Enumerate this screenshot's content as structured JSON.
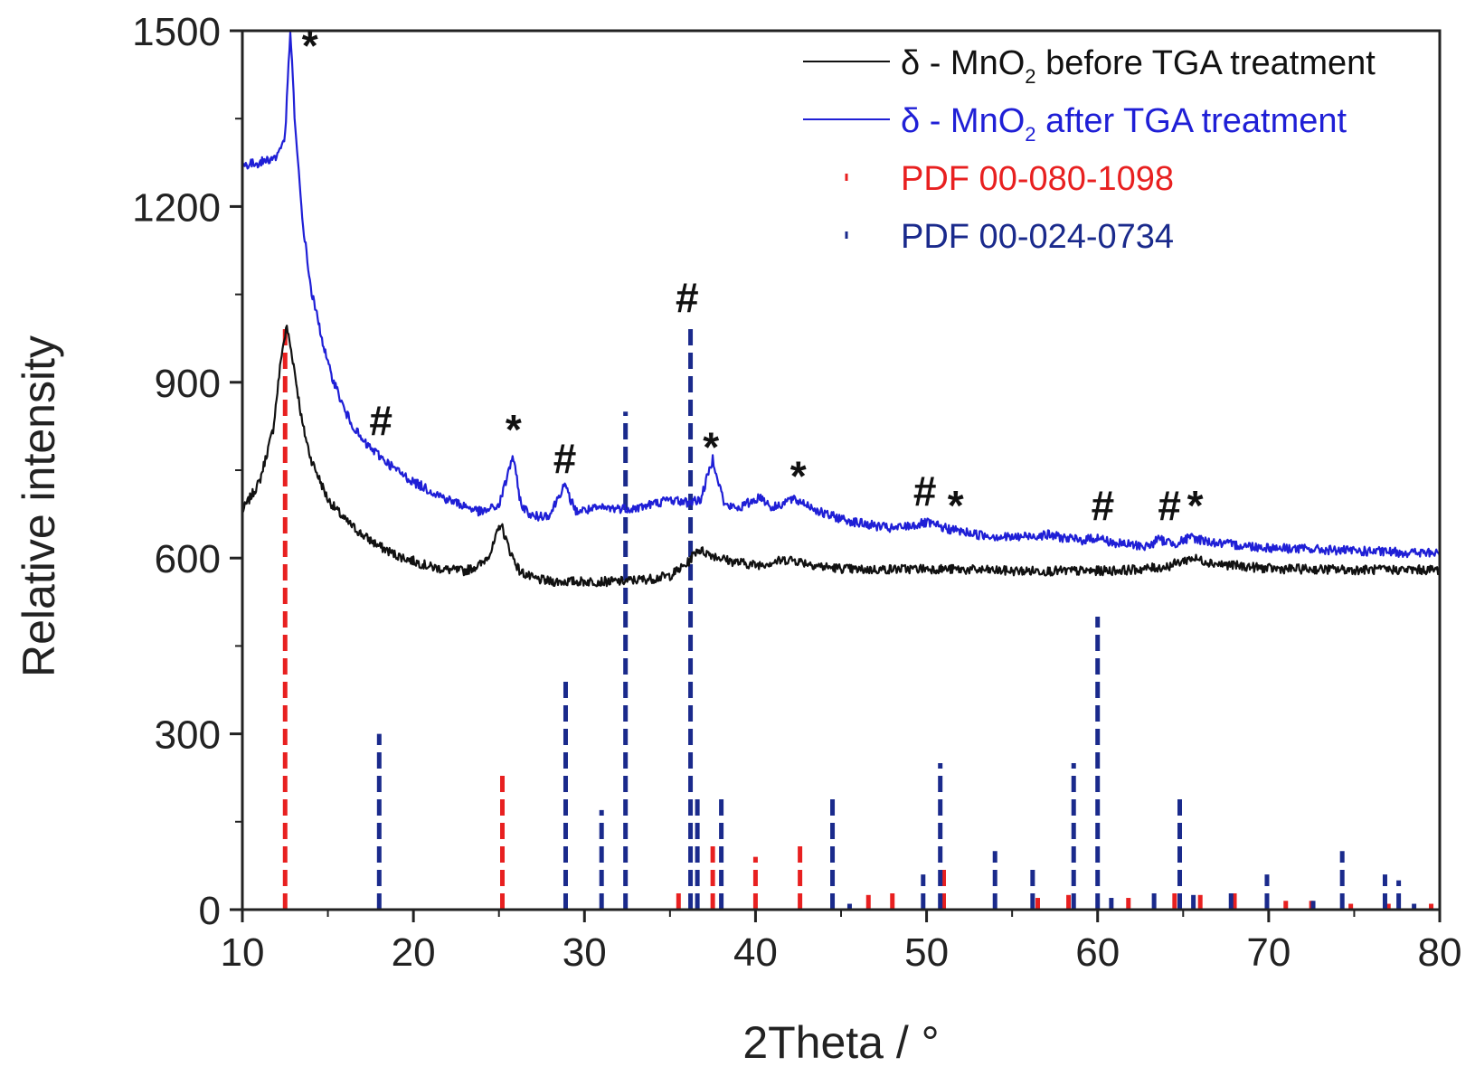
{
  "chart_data": {
    "type": "line",
    "title": "",
    "xlabel": "2Theta / °",
    "ylabel": "Relative intensity",
    "xlim": [
      10,
      80
    ],
    "ylim": [
      0,
      1500
    ],
    "x_ticks": [
      10,
      20,
      30,
      40,
      50,
      60,
      70,
      80
    ],
    "y_ticks": [
      0,
      300,
      600,
      900,
      1200,
      1500
    ],
    "grid": false,
    "legend_position": "top-right",
    "legend": [
      {
        "prefix": "δ - MnO",
        "sub": "2",
        "suffix": " before TGA treatment",
        "color": "#111111",
        "kind": "line"
      },
      {
        "prefix": "δ - MnO",
        "sub": "2",
        "suffix": " after TGA treatment",
        "color": "#1f1fd6",
        "kind": "line"
      },
      {
        "text": "PDF 00-080-1098",
        "color": "#e82020",
        "kind": "marker"
      },
      {
        "text": "PDF 00-024-0734",
        "color": "#1a2a8c",
        "kind": "marker"
      }
    ],
    "series": [
      {
        "name": "δ - MnO2 before TGA treatment",
        "color": "#111111",
        "x": [
          10,
          11,
          11.8,
          12.3,
          12.6,
          13.0,
          13.5,
          14,
          15,
          16,
          17,
          18,
          19,
          20,
          21,
          22,
          23,
          24,
          24.6,
          25.1,
          25.6,
          26.2,
          27,
          28,
          30,
          32,
          34,
          35,
          36,
          36.6,
          37.5,
          38.5,
          40,
          42,
          44,
          46,
          50,
          55,
          60,
          62,
          64,
          65.5,
          67,
          70,
          75,
          80
        ],
        "y": [
          680,
          730,
          820,
          950,
          995,
          930,
          830,
          770,
          700,
          665,
          640,
          620,
          605,
          595,
          585,
          580,
          578,
          590,
          615,
          660,
          615,
          578,
          565,
          560,
          560,
          560,
          565,
          570,
          590,
          615,
          605,
          595,
          588,
          598,
          585,
          580,
          582,
          578,
          578,
          580,
          585,
          600,
          590,
          582,
          580,
          580
        ]
      },
      {
        "name": "δ - MnO2 after TGA treatment",
        "color": "#1f1fd6",
        "x": [
          10,
          11,
          12,
          12.5,
          12.8,
          13.1,
          13.5,
          14,
          15,
          16,
          17,
          18,
          19,
          20,
          22,
          24,
          25,
          25.4,
          25.8,
          26.3,
          27,
          28,
          28.8,
          29.5,
          31,
          33,
          35,
          36,
          36.8,
          37.5,
          38.2,
          39,
          40.3,
          41,
          42,
          42.8,
          44,
          46,
          48,
          50,
          51.2,
          53,
          55,
          57,
          59,
          60,
          61,
          63,
          63.5,
          64.5,
          65.5,
          67,
          70,
          75,
          80
        ],
        "y": [
          1270,
          1275,
          1285,
          1320,
          1500,
          1330,
          1180,
          1060,
          930,
          850,
          800,
          775,
          750,
          730,
          700,
          678,
          690,
          730,
          775,
          690,
          670,
          675,
          725,
          680,
          685,
          685,
          700,
          695,
          700,
          770,
          690,
          685,
          705,
          685,
          700,
          695,
          675,
          660,
          650,
          660,
          650,
          640,
          635,
          640,
          630,
          635,
          625,
          620,
          632,
          625,
          635,
          625,
          618,
          612,
          608
        ]
      }
    ],
    "reference_patterns": [
      {
        "name": "PDF 00-080-1098",
        "color": "#e82020",
        "x": [
          12.5,
          25.2,
          35.5,
          37.5,
          40.0,
          42.6,
          46.6,
          48.0,
          51.0,
          56.5,
          58.3,
          61.8,
          64.5,
          66.0,
          68.0,
          71.0,
          72.5,
          74.8,
          77.0,
          79.5
        ],
        "y": [
          1000,
          240,
          40,
          110,
          90,
          110,
          25,
          30,
          75,
          20,
          25,
          20,
          30,
          25,
          30,
          15,
          15,
          10,
          10,
          10
        ]
      },
      {
        "name": "PDF 00-024-0734",
        "color": "#1a2a8c",
        "x": [
          18.0,
          28.9,
          31.0,
          32.4,
          36.2,
          36.6,
          38.0,
          44.5,
          45.5,
          49.8,
          50.8,
          54.0,
          56.2,
          58.6,
          60.0,
          60.8,
          63.3,
          64.8,
          65.6,
          67.8,
          69.9,
          72.6,
          74.3,
          76.8,
          77.6,
          78.5
        ],
        "y": [
          300,
          400,
          170,
          850,
          1000,
          200,
          200,
          200,
          10,
          60,
          250,
          100,
          80,
          250,
          500,
          20,
          30,
          200,
          25,
          40,
          60,
          15,
          100,
          60,
          50,
          10
        ]
      }
    ],
    "annotations": [
      {
        "text": "*",
        "x": 13.95,
        "y": 1450
      },
      {
        "text": "#",
        "x": 18.1,
        "y": 810
      },
      {
        "text": "*",
        "x": 25.85,
        "y": 795
      },
      {
        "text": "#",
        "x": 28.85,
        "y": 745
      },
      {
        "text": "#",
        "x": 36.0,
        "y": 1020
      },
      {
        "text": "*",
        "x": 37.4,
        "y": 765
      },
      {
        "text": "*",
        "x": 42.5,
        "y": 715
      },
      {
        "text": "#",
        "x": 49.9,
        "y": 690
      },
      {
        "text": "*",
        "x": 51.7,
        "y": 665
      },
      {
        "text": "#",
        "x": 60.3,
        "y": 665
      },
      {
        "text": "#",
        "x": 64.2,
        "y": 665
      },
      {
        "text": "*",
        "x": 65.7,
        "y": 665
      }
    ]
  }
}
